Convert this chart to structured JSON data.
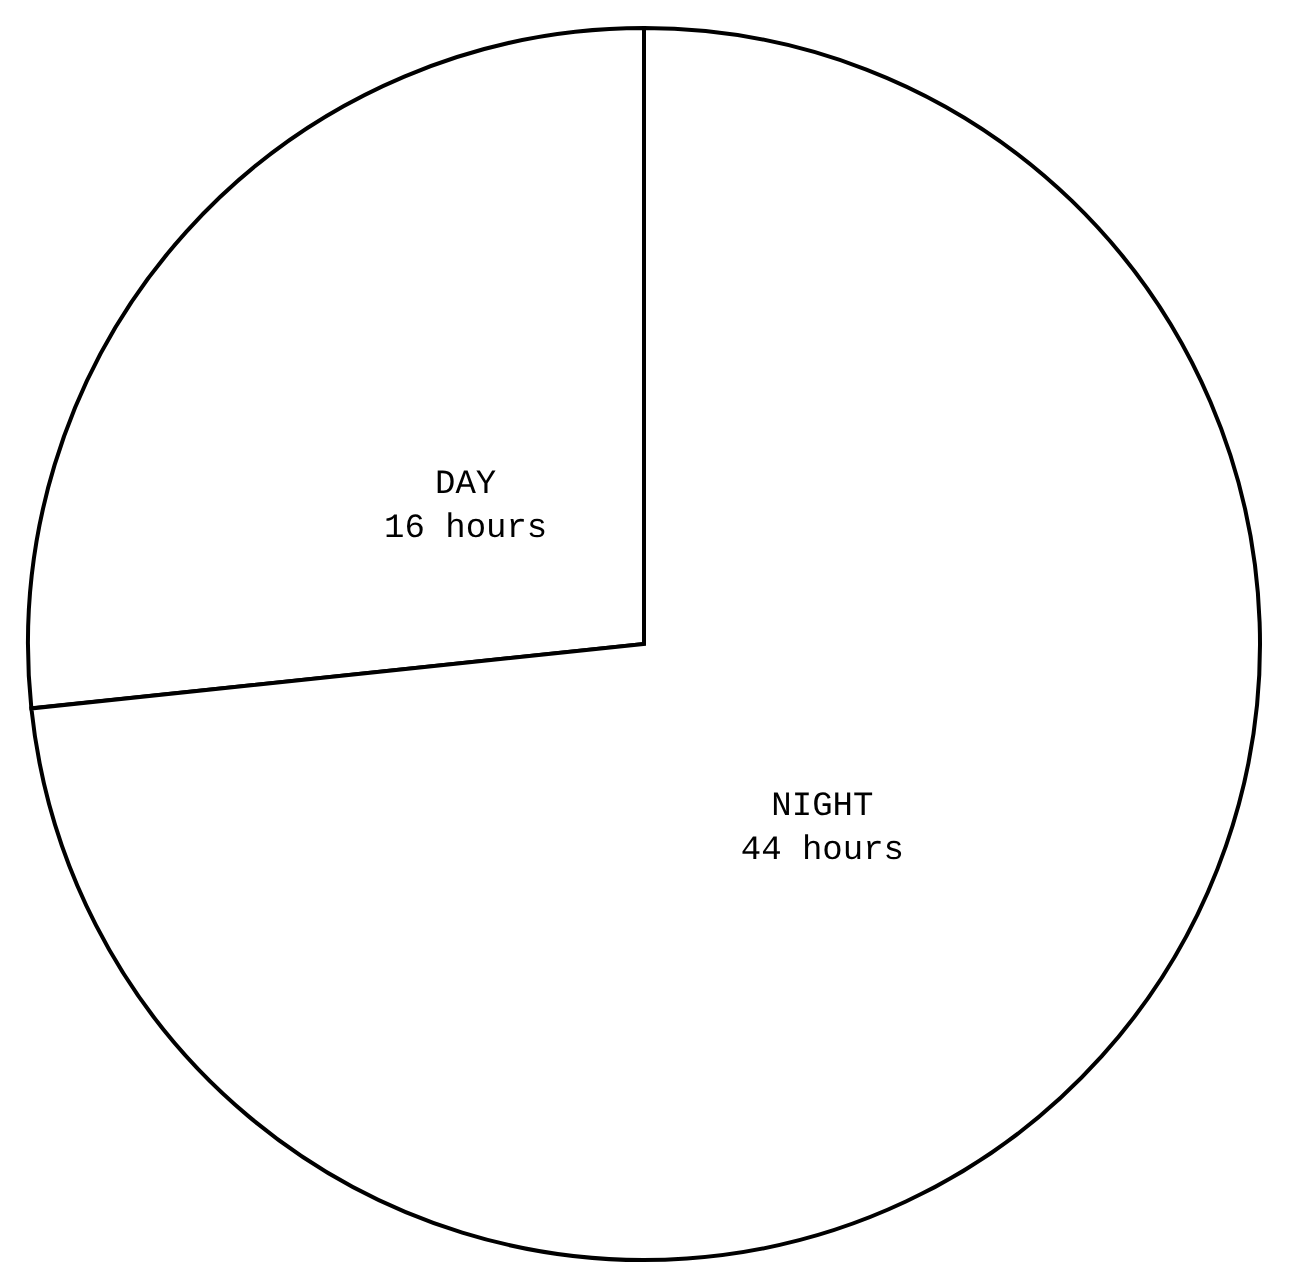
{
  "chart_data": {
    "type": "pie",
    "categories": [
      "DAY",
      "NIGHT"
    ],
    "values": [
      16,
      44
    ],
    "colors": [
      "#ffffff",
      "#ffffff"
    ],
    "value_labels": [
      "16 hours",
      "44 hours"
    ]
  }
}
